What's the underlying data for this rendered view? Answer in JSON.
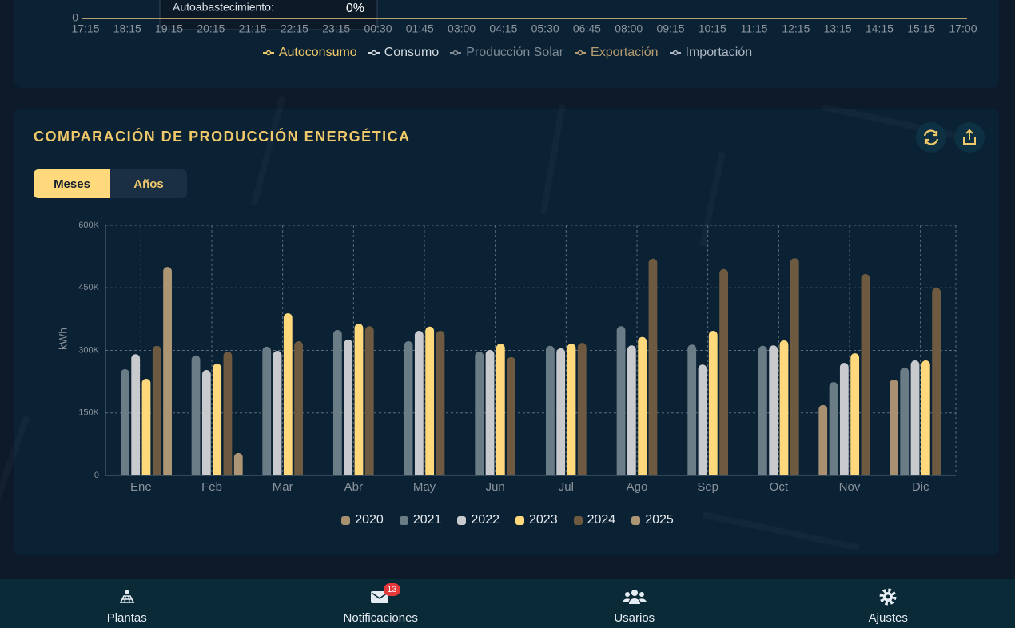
{
  "chart_data": [
    {
      "type": "line",
      "categories": [
        "17:15",
        "18:15",
        "19:15",
        "20:15",
        "21:15",
        "22:15",
        "23:15",
        "00:30",
        "01:45",
        "03:00",
        "04:15",
        "05:30",
        "06:45",
        "08:00",
        "09:15",
        "10:15",
        "11:15",
        "12:15",
        "13:15",
        "14:15",
        "15:15",
        "17:00"
      ],
      "yticks": [
        0
      ],
      "series": [
        {
          "name": "Autoconsumo",
          "color": "#efc868"
        },
        {
          "name": "Consumo",
          "color": "#d3d9df"
        },
        {
          "name": "Producción Solar",
          "color": "#7f8c96"
        },
        {
          "name": "Exportación",
          "color": "#b59d71"
        },
        {
          "name": "Importación",
          "color": "#aeb8c3"
        }
      ],
      "tooltip": {
        "label": "Autoabastecimiento:",
        "value": "0%"
      },
      "legend": "bottom"
    },
    {
      "type": "bar",
      "title": "COMPARACIÓN DE PRODUCCIÓN ENERGÉTICA",
      "ylabel": "kWh",
      "categories": [
        "Ene",
        "Feb",
        "Mar",
        "Abr",
        "May",
        "Jun",
        "Jul",
        "Ago",
        "Sep",
        "Oct",
        "Nov",
        "Dic"
      ],
      "ylim": [
        0,
        600000
      ],
      "yticks": [
        0,
        {
          "value": 150000,
          "label": "150K"
        },
        {
          "value": 300000,
          "label": "300K"
        },
        {
          "value": 450000,
          "label": "450K"
        },
        {
          "value": 600000,
          "label": "600K"
        }
      ],
      "grid": true,
      "legend": "bottom",
      "series": [
        {
          "name": "2020",
          "color": "#a89070",
          "values": [
            null,
            null,
            null,
            null,
            null,
            null,
            null,
            null,
            null,
            null,
            169000,
            230000
          ]
        },
        {
          "name": "2021",
          "color": "#6a7c85",
          "values": [
            255000,
            288000,
            309000,
            349000,
            322000,
            297000,
            311000,
            358000,
            314000,
            311000,
            224000,
            259000
          ]
        },
        {
          "name": "2022",
          "color": "#c9cace",
          "values": [
            291000,
            253000,
            299000,
            326000,
            347000,
            301000,
            305000,
            312000,
            266000,
            312000,
            270000,
            276000
          ]
        },
        {
          "name": "2023",
          "color": "#ffd97c",
          "values": [
            232000,
            268000,
            389000,
            364000,
            357000,
            316000,
            316000,
            332000,
            347000,
            324000,
            293000,
            276000
          ]
        },
        {
          "name": "2024",
          "color": "#6d5a40",
          "values": [
            311000,
            297000,
            322000,
            358000,
            347000,
            284000,
            318000,
            520000,
            495000,
            521000,
            483000,
            450000
          ]
        },
        {
          "name": "2025",
          "color": "#ad9674",
          "values": [
            500000,
            54000,
            null,
            null,
            null,
            null,
            null,
            null,
            null,
            null,
            null,
            null
          ]
        }
      ]
    }
  ],
  "ui": {
    "toggle": [
      "Meses",
      "Años"
    ],
    "nav": [
      {
        "label": "Plantas"
      },
      {
        "label": "Notificaciones",
        "badge": "13"
      },
      {
        "label": "Usarios"
      },
      {
        "label": "Ajustes"
      }
    ]
  }
}
